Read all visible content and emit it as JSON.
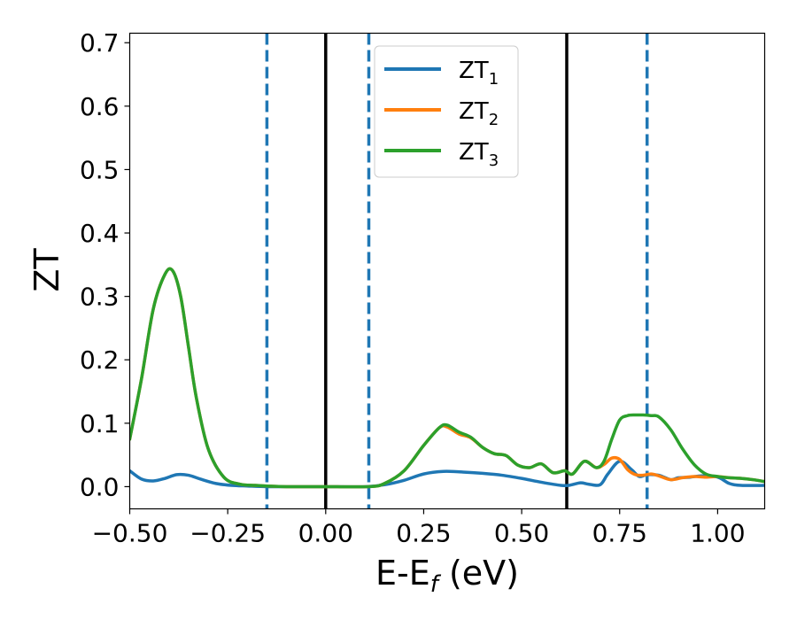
{
  "chart_data": {
    "type": "line",
    "xlabel": "E-E",
    "xlabel_sub": "f",
    "xlabel_unit": " (eV)",
    "ylabel": "ZT",
    "xlim": [
      -0.5,
      1.12
    ],
    "ylim": [
      -0.035,
      0.715
    ],
    "x_ticks": [
      -0.5,
      -0.25,
      0.0,
      0.25,
      0.5,
      0.75,
      1.0
    ],
    "x_tick_labels": [
      "−0.50",
      "−0.25",
      "0.00",
      "0.25",
      "0.50",
      "0.75",
      "1.00"
    ],
    "y_ticks": [
      0.0,
      0.1,
      0.2,
      0.3,
      0.4,
      0.5,
      0.6,
      0.7
    ],
    "y_tick_labels": [
      "0.0",
      "0.1",
      "0.2",
      "0.3",
      "0.4",
      "0.5",
      "0.6",
      "0.7"
    ],
    "grid": false,
    "legend_position": "top-center",
    "vertical_lines": [
      {
        "x": -0.15,
        "style": "dashed",
        "color": "#1f77b4"
      },
      {
        "x": 0.0,
        "style": "solid",
        "color": "#000000"
      },
      {
        "x": 0.11,
        "style": "dashed",
        "color": "#1f77b4"
      },
      {
        "x": 0.615,
        "style": "solid",
        "color": "#000000"
      },
      {
        "x": 0.82,
        "style": "dashed",
        "color": "#1f77b4"
      }
    ],
    "series": [
      {
        "name": "ZT",
        "sub": "1",
        "color": "#1f77b4",
        "x": [
          -0.5,
          -0.47,
          -0.44,
          -0.41,
          -0.38,
          -0.35,
          -0.32,
          -0.28,
          -0.24,
          -0.2,
          -0.15,
          -0.1,
          0.0,
          0.1,
          0.15,
          0.2,
          0.25,
          0.3,
          0.35,
          0.4,
          0.45,
          0.5,
          0.55,
          0.6,
          0.62,
          0.65,
          0.67,
          0.7,
          0.72,
          0.75,
          0.78,
          0.8,
          0.82,
          0.85,
          0.88,
          0.9,
          0.93,
          0.96,
          1.0,
          1.03,
          1.06,
          1.12
        ],
        "y": [
          0.025,
          0.012,
          0.009,
          0.013,
          0.019,
          0.018,
          0.012,
          0.005,
          0.002,
          0.001,
          0.0,
          0.0,
          0.0,
          0.0,
          0.003,
          0.01,
          0.02,
          0.024,
          0.023,
          0.021,
          0.018,
          0.013,
          0.007,
          0.002,
          0.002,
          0.006,
          0.004,
          0.003,
          0.02,
          0.04,
          0.027,
          0.016,
          0.019,
          0.018,
          0.011,
          0.014,
          0.015,
          0.017,
          0.015,
          0.005,
          0.002,
          0.002
        ]
      },
      {
        "name": "ZT",
        "sub": "2",
        "color": "#ff7f0e",
        "x": [
          -0.5,
          -0.47,
          -0.44,
          -0.41,
          -0.39,
          -0.37,
          -0.35,
          -0.33,
          -0.3,
          -0.26,
          -0.22,
          -0.18,
          -0.15,
          -0.1,
          0.0,
          0.11,
          0.15,
          0.2,
          0.25,
          0.29,
          0.31,
          0.34,
          0.37,
          0.4,
          0.43,
          0.46,
          0.49,
          0.52,
          0.55,
          0.58,
          0.61,
          0.63,
          0.66,
          0.69,
          0.71,
          0.73,
          0.75,
          0.77,
          0.79,
          0.81,
          0.83,
          0.85,
          0.88,
          0.91,
          0.94,
          0.97,
          1.0,
          1.03,
          1.06,
          1.09,
          1.12
        ],
        "y": [
          0.075,
          0.17,
          0.28,
          0.335,
          0.34,
          0.3,
          0.22,
          0.14,
          0.06,
          0.015,
          0.004,
          0.002,
          0.001,
          0.0,
          0.0,
          0.0,
          0.005,
          0.025,
          0.065,
          0.093,
          0.094,
          0.083,
          0.077,
          0.062,
          0.052,
          0.049,
          0.034,
          0.03,
          0.036,
          0.022,
          0.025,
          0.02,
          0.04,
          0.03,
          0.035,
          0.045,
          0.043,
          0.027,
          0.019,
          0.018,
          0.02,
          0.017,
          0.011,
          0.014,
          0.016,
          0.015,
          0.016,
          0.014,
          0.013,
          0.011,
          0.008
        ]
      },
      {
        "name": "ZT",
        "sub": "3",
        "color": "#2ca02c",
        "x": [
          -0.5,
          -0.47,
          -0.44,
          -0.41,
          -0.39,
          -0.37,
          -0.35,
          -0.33,
          -0.3,
          -0.26,
          -0.22,
          -0.18,
          -0.15,
          -0.1,
          0.0,
          0.11,
          0.15,
          0.2,
          0.25,
          0.29,
          0.31,
          0.34,
          0.37,
          0.4,
          0.43,
          0.46,
          0.49,
          0.52,
          0.55,
          0.58,
          0.61,
          0.63,
          0.66,
          0.69,
          0.71,
          0.73,
          0.75,
          0.77,
          0.79,
          0.81,
          0.83,
          0.85,
          0.88,
          0.91,
          0.94,
          0.97,
          1.0,
          1.03,
          1.06,
          1.09,
          1.12
        ],
        "y": [
          0.075,
          0.17,
          0.28,
          0.335,
          0.34,
          0.3,
          0.22,
          0.14,
          0.06,
          0.015,
          0.004,
          0.002,
          0.001,
          0.0,
          0.0,
          0.0,
          0.005,
          0.025,
          0.065,
          0.093,
          0.097,
          0.086,
          0.078,
          0.062,
          0.052,
          0.049,
          0.034,
          0.03,
          0.036,
          0.022,
          0.025,
          0.02,
          0.04,
          0.03,
          0.04,
          0.075,
          0.105,
          0.112,
          0.113,
          0.113,
          0.112,
          0.11,
          0.09,
          0.06,
          0.035,
          0.02,
          0.016,
          0.014,
          0.013,
          0.011,
          0.008
        ]
      }
    ]
  }
}
